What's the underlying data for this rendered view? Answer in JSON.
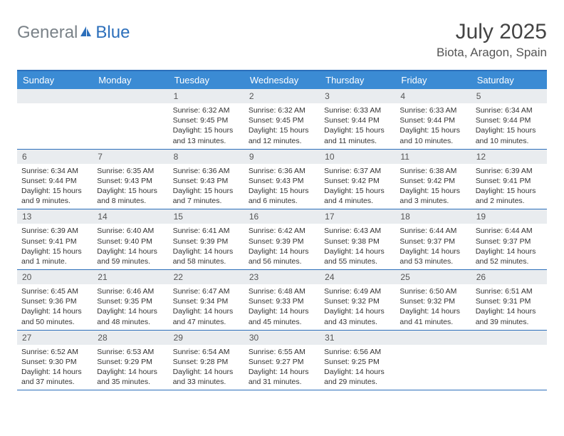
{
  "brand": {
    "gray": "General",
    "blue": "Blue"
  },
  "title": "July 2025",
  "location": "Biota, Aragon, Spain",
  "colors": {
    "header_bar": "#3b8bd4",
    "border": "#2c6fbb",
    "date_bg": "#e9ecef",
    "logo_gray": "#7a8288",
    "logo_blue": "#2c6fbb"
  },
  "day_names": [
    "Sunday",
    "Monday",
    "Tuesday",
    "Wednesday",
    "Thursday",
    "Friday",
    "Saturday"
  ],
  "weeks": [
    [
      {
        "date": "",
        "sunrise": "",
        "sunset": "",
        "daylight": ""
      },
      {
        "date": "",
        "sunrise": "",
        "sunset": "",
        "daylight": ""
      },
      {
        "date": "1",
        "sunrise": "Sunrise: 6:32 AM",
        "sunset": "Sunset: 9:45 PM",
        "daylight": "Daylight: 15 hours and 13 minutes."
      },
      {
        "date": "2",
        "sunrise": "Sunrise: 6:32 AM",
        "sunset": "Sunset: 9:45 PM",
        "daylight": "Daylight: 15 hours and 12 minutes."
      },
      {
        "date": "3",
        "sunrise": "Sunrise: 6:33 AM",
        "sunset": "Sunset: 9:44 PM",
        "daylight": "Daylight: 15 hours and 11 minutes."
      },
      {
        "date": "4",
        "sunrise": "Sunrise: 6:33 AM",
        "sunset": "Sunset: 9:44 PM",
        "daylight": "Daylight: 15 hours and 10 minutes."
      },
      {
        "date": "5",
        "sunrise": "Sunrise: 6:34 AM",
        "sunset": "Sunset: 9:44 PM",
        "daylight": "Daylight: 15 hours and 10 minutes."
      }
    ],
    [
      {
        "date": "6",
        "sunrise": "Sunrise: 6:34 AM",
        "sunset": "Sunset: 9:44 PM",
        "daylight": "Daylight: 15 hours and 9 minutes."
      },
      {
        "date": "7",
        "sunrise": "Sunrise: 6:35 AM",
        "sunset": "Sunset: 9:43 PM",
        "daylight": "Daylight: 15 hours and 8 minutes."
      },
      {
        "date": "8",
        "sunrise": "Sunrise: 6:36 AM",
        "sunset": "Sunset: 9:43 PM",
        "daylight": "Daylight: 15 hours and 7 minutes."
      },
      {
        "date": "9",
        "sunrise": "Sunrise: 6:36 AM",
        "sunset": "Sunset: 9:43 PM",
        "daylight": "Daylight: 15 hours and 6 minutes."
      },
      {
        "date": "10",
        "sunrise": "Sunrise: 6:37 AM",
        "sunset": "Sunset: 9:42 PM",
        "daylight": "Daylight: 15 hours and 4 minutes."
      },
      {
        "date": "11",
        "sunrise": "Sunrise: 6:38 AM",
        "sunset": "Sunset: 9:42 PM",
        "daylight": "Daylight: 15 hours and 3 minutes."
      },
      {
        "date": "12",
        "sunrise": "Sunrise: 6:39 AM",
        "sunset": "Sunset: 9:41 PM",
        "daylight": "Daylight: 15 hours and 2 minutes."
      }
    ],
    [
      {
        "date": "13",
        "sunrise": "Sunrise: 6:39 AM",
        "sunset": "Sunset: 9:41 PM",
        "daylight": "Daylight: 15 hours and 1 minute."
      },
      {
        "date": "14",
        "sunrise": "Sunrise: 6:40 AM",
        "sunset": "Sunset: 9:40 PM",
        "daylight": "Daylight: 14 hours and 59 minutes."
      },
      {
        "date": "15",
        "sunrise": "Sunrise: 6:41 AM",
        "sunset": "Sunset: 9:39 PM",
        "daylight": "Daylight: 14 hours and 58 minutes."
      },
      {
        "date": "16",
        "sunrise": "Sunrise: 6:42 AM",
        "sunset": "Sunset: 9:39 PM",
        "daylight": "Daylight: 14 hours and 56 minutes."
      },
      {
        "date": "17",
        "sunrise": "Sunrise: 6:43 AM",
        "sunset": "Sunset: 9:38 PM",
        "daylight": "Daylight: 14 hours and 55 minutes."
      },
      {
        "date": "18",
        "sunrise": "Sunrise: 6:44 AM",
        "sunset": "Sunset: 9:37 PM",
        "daylight": "Daylight: 14 hours and 53 minutes."
      },
      {
        "date": "19",
        "sunrise": "Sunrise: 6:44 AM",
        "sunset": "Sunset: 9:37 PM",
        "daylight": "Daylight: 14 hours and 52 minutes."
      }
    ],
    [
      {
        "date": "20",
        "sunrise": "Sunrise: 6:45 AM",
        "sunset": "Sunset: 9:36 PM",
        "daylight": "Daylight: 14 hours and 50 minutes."
      },
      {
        "date": "21",
        "sunrise": "Sunrise: 6:46 AM",
        "sunset": "Sunset: 9:35 PM",
        "daylight": "Daylight: 14 hours and 48 minutes."
      },
      {
        "date": "22",
        "sunrise": "Sunrise: 6:47 AM",
        "sunset": "Sunset: 9:34 PM",
        "daylight": "Daylight: 14 hours and 47 minutes."
      },
      {
        "date": "23",
        "sunrise": "Sunrise: 6:48 AM",
        "sunset": "Sunset: 9:33 PM",
        "daylight": "Daylight: 14 hours and 45 minutes."
      },
      {
        "date": "24",
        "sunrise": "Sunrise: 6:49 AM",
        "sunset": "Sunset: 9:32 PM",
        "daylight": "Daylight: 14 hours and 43 minutes."
      },
      {
        "date": "25",
        "sunrise": "Sunrise: 6:50 AM",
        "sunset": "Sunset: 9:32 PM",
        "daylight": "Daylight: 14 hours and 41 minutes."
      },
      {
        "date": "26",
        "sunrise": "Sunrise: 6:51 AM",
        "sunset": "Sunset: 9:31 PM",
        "daylight": "Daylight: 14 hours and 39 minutes."
      }
    ],
    [
      {
        "date": "27",
        "sunrise": "Sunrise: 6:52 AM",
        "sunset": "Sunset: 9:30 PM",
        "daylight": "Daylight: 14 hours and 37 minutes."
      },
      {
        "date": "28",
        "sunrise": "Sunrise: 6:53 AM",
        "sunset": "Sunset: 9:29 PM",
        "daylight": "Daylight: 14 hours and 35 minutes."
      },
      {
        "date": "29",
        "sunrise": "Sunrise: 6:54 AM",
        "sunset": "Sunset: 9:28 PM",
        "daylight": "Daylight: 14 hours and 33 minutes."
      },
      {
        "date": "30",
        "sunrise": "Sunrise: 6:55 AM",
        "sunset": "Sunset: 9:27 PM",
        "daylight": "Daylight: 14 hours and 31 minutes."
      },
      {
        "date": "31",
        "sunrise": "Sunrise: 6:56 AM",
        "sunset": "Sunset: 9:25 PM",
        "daylight": "Daylight: 14 hours and 29 minutes."
      },
      {
        "date": "",
        "sunrise": "",
        "sunset": "",
        "daylight": ""
      },
      {
        "date": "",
        "sunrise": "",
        "sunset": "",
        "daylight": ""
      }
    ]
  ]
}
